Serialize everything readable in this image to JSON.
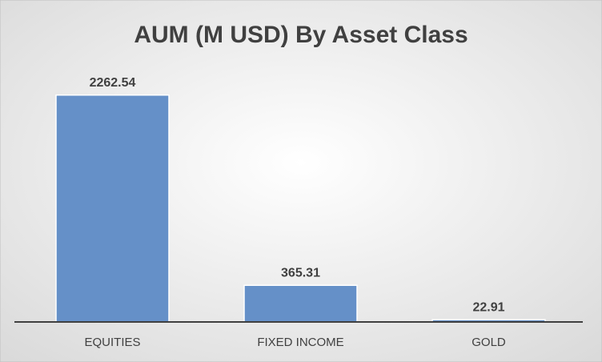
{
  "chart_data": {
    "type": "bar",
    "title": "AUM (M USD) By Asset Class",
    "categories": [
      "EQUITIES",
      "FIXED INCOME",
      "GOLD"
    ],
    "values": [
      2262.54,
      365.31,
      22.91
    ],
    "color": "#6590c8",
    "ylim": [
      0,
      2500
    ]
  }
}
